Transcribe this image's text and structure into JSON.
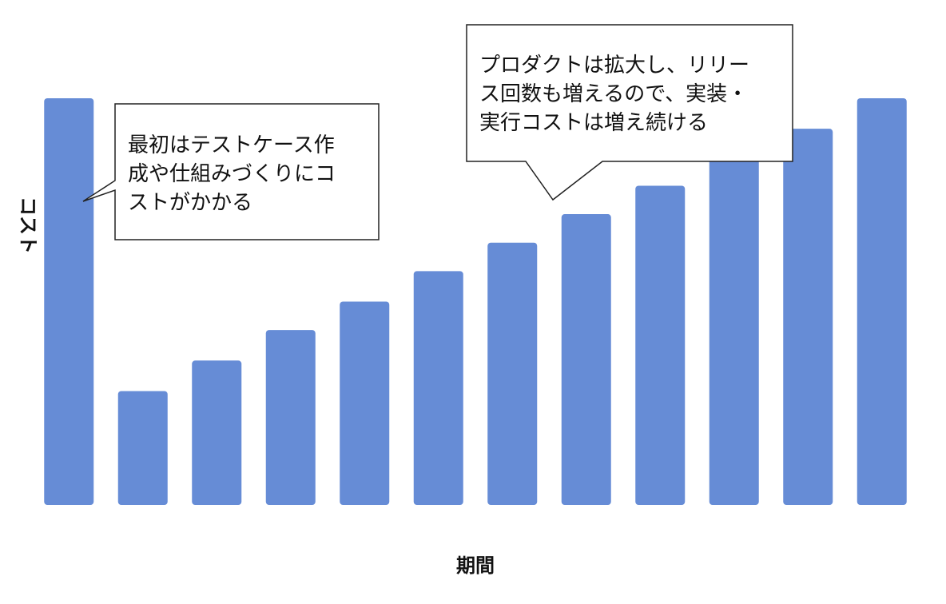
{
  "chart_data": {
    "type": "bar",
    "categories": [
      "",
      "",
      "",
      "",
      "",
      "",
      "",
      "",
      "",
      "",
      "",
      ""
    ],
    "values": [
      100,
      28,
      35.5,
      43,
      50,
      57.5,
      64.5,
      71.5,
      78.5,
      85.5,
      92.5,
      100
    ],
    "title": "",
    "xlabel": "期間",
    "ylabel": "コスト",
    "ylim": [
      0,
      100
    ],
    "grid": false,
    "legend": "none",
    "bar_color": "#668cd6",
    "annotations": [
      {
        "id": "initial-cost",
        "text": "最初はテストケース作\n成や仕組みづくりにコ\nストがかかる",
        "target_index": 0
      },
      {
        "id": "growing-cost",
        "text": "プロダクトは拡大し、リリー\nス回数も増えるので、実装・\n実行コストは増え続ける",
        "target_index": 6
      }
    ]
  }
}
